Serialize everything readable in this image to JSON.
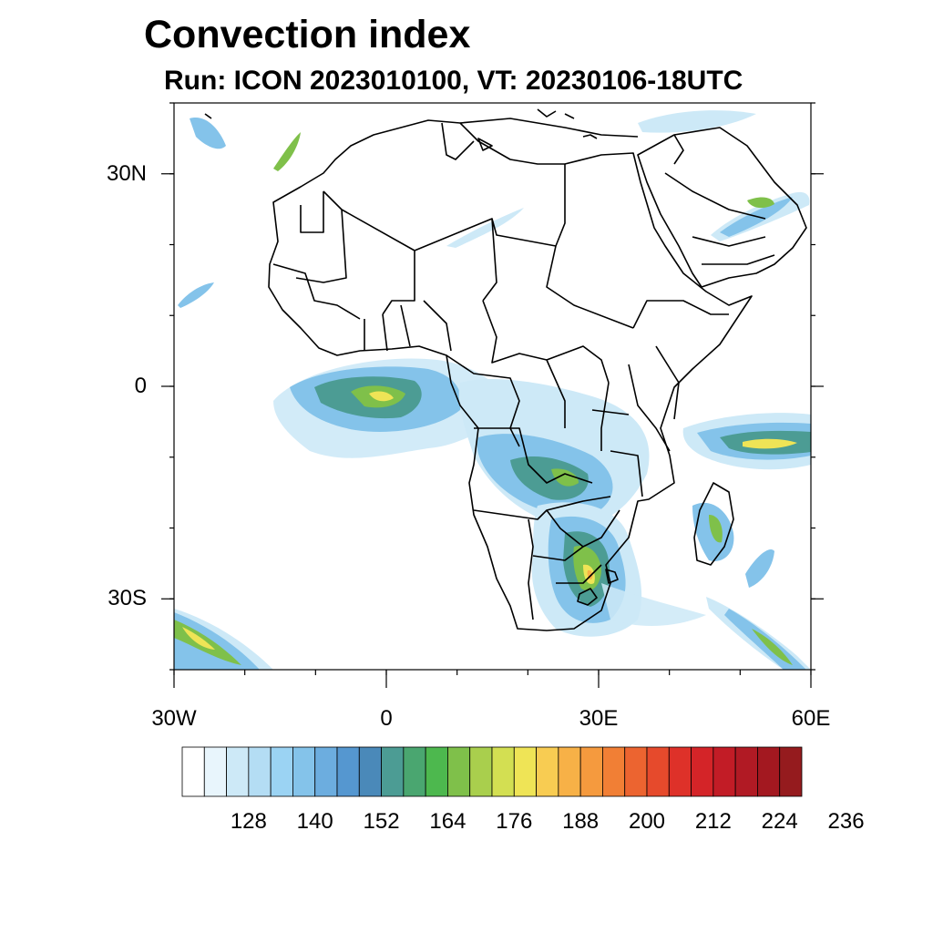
{
  "header": {
    "title": "Convection index",
    "subtitle": "Run: ICON 2023010100,  VT: 20230106-18UTC"
  },
  "map": {
    "extent": {
      "lon_min": -30,
      "lon_max": 60,
      "lat_min": -40,
      "lat_max": 40
    },
    "lat_ticks": [
      {
        "lat": 30,
        "label": "30N"
      },
      {
        "lat": 0,
        "label": "0"
      },
      {
        "lat": -30,
        "label": "30S"
      }
    ],
    "lon_ticks": [
      {
        "lon": -30,
        "label": "30W"
      },
      {
        "lon": 0,
        "label": "0"
      },
      {
        "lon": 30,
        "label": "30E"
      },
      {
        "lon": 60,
        "label": "60E"
      }
    ]
  },
  "colorbar": {
    "colors": [
      "#ffffff",
      "#e8f5fc",
      "#cde9f7",
      "#b4ddf4",
      "#9bd3f3",
      "#84c3ea",
      "#6caddf",
      "#5597d0",
      "#4a89b9",
      "#4c9c94",
      "#4aa670",
      "#4db84e",
      "#7fc04a",
      "#a9cf4d",
      "#d3df52",
      "#efe456",
      "#f8cc52",
      "#f7b147",
      "#f59a3e",
      "#f17f35",
      "#ec6430",
      "#e64a2c",
      "#de3129",
      "#d42428",
      "#c21c26",
      "#b11a24",
      "#a31820",
      "#951b1e"
    ],
    "labels": [
      "128",
      "140",
      "152",
      "164",
      "176",
      "188",
      "200",
      "212",
      "224",
      "236"
    ]
  },
  "layer_colors": {
    "light": "#cde9f7",
    "medium": "#84c3ea",
    "teal": "#4c9c94",
    "green": "#7fc04a",
    "yellow": "#efe456",
    "orange": "#f7b147",
    "border": "#000000"
  }
}
